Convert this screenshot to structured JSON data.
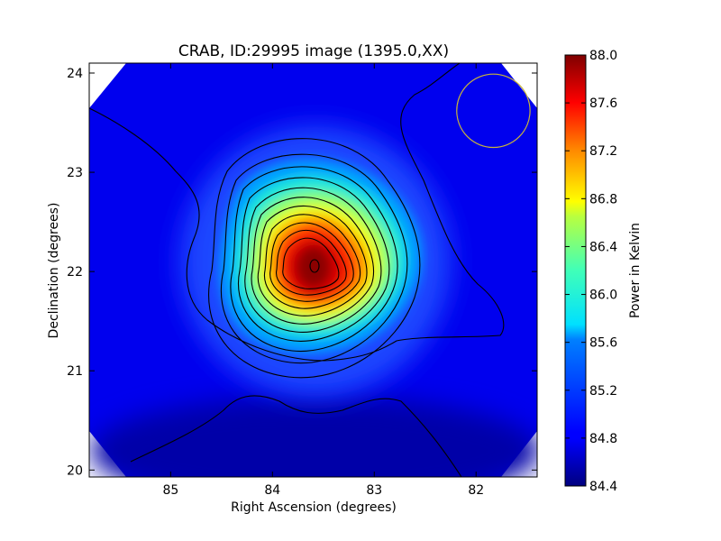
{
  "chart_data": {
    "type": "heatmap",
    "title": "CRAB, ID:29995 image (1395.0,XX)",
    "xlabel": "Right Ascension (degrees)",
    "ylabel": "Declination (degrees)",
    "colorbar_label": "Power in Kelvin",
    "xlim": [
      85.8,
      81.4
    ],
    "ylim": [
      19.93,
      24.1
    ],
    "x_ticks": [
      85,
      84,
      83,
      82
    ],
    "y_ticks": [
      20,
      21,
      22,
      23,
      24
    ],
    "colorbar_range": [
      84.4,
      88.0
    ],
    "colorbar_ticks": [
      "84.4",
      "84.8",
      "85.2",
      "85.6",
      "86.0",
      "86.4",
      "86.8",
      "87.2",
      "87.6",
      "88.0"
    ],
    "colormap": "jet",
    "background_level": 84.9,
    "peak": {
      "ra": 83.63,
      "dec": 22.02,
      "value": 87.9
    },
    "contour_interval": 0.2,
    "beam_circle": {
      "ra": 81.83,
      "dec": 23.62,
      "radius_deg": 0.36,
      "color": "#c8b43c"
    },
    "grid": false,
    "legend": "none"
  }
}
